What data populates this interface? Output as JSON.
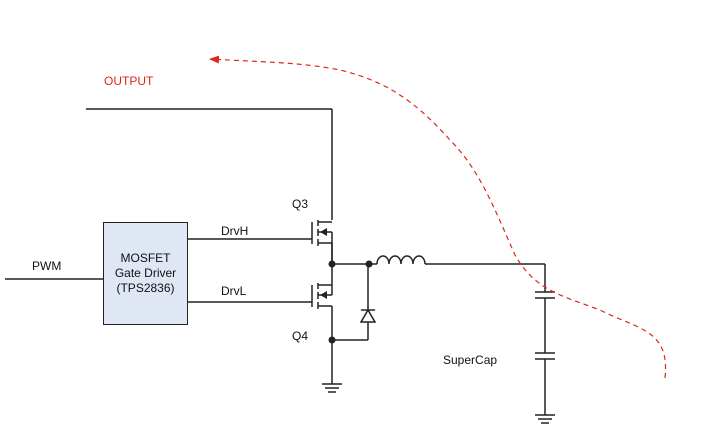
{
  "labels": {
    "output": "OUTPUT",
    "pwm": "PWM",
    "drvh": "DrvH",
    "drvl": "DrvL",
    "q3": "Q3",
    "q4": "Q4",
    "supercap": "SuperCap"
  },
  "driver": {
    "line1": "MOSFET",
    "line2": "Gate Driver",
    "line3": "(TPS2836)"
  },
  "colors": {
    "wire": "#222222",
    "box_fill": "#dfe7f5",
    "output_label": "#e0261b",
    "current_path": "#e0261b"
  }
}
